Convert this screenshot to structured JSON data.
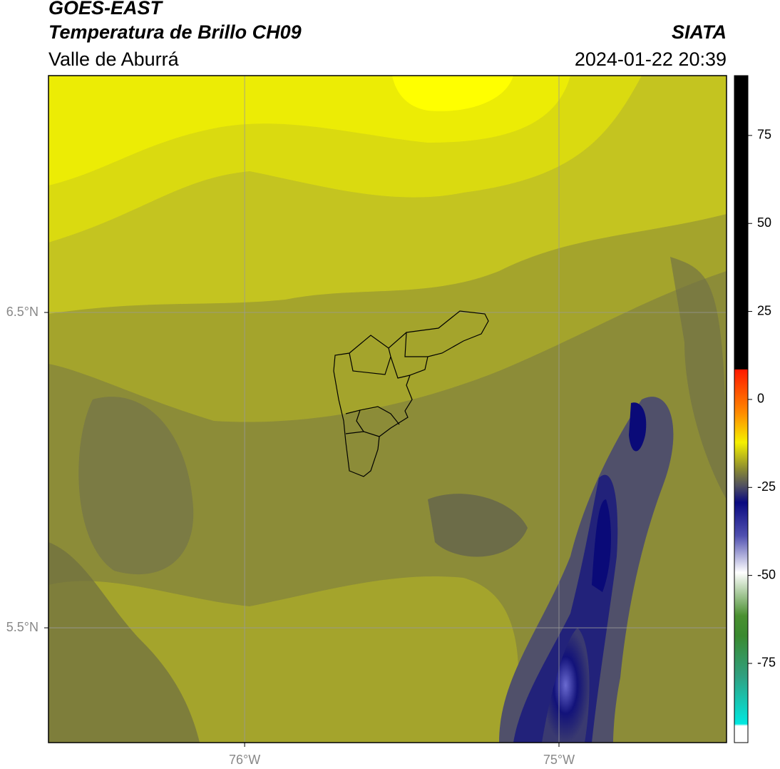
{
  "header": {
    "title": "GOES-EAST",
    "subtitle": "Temperatura de Brillo CH09",
    "region": "Valle de Aburrá",
    "source": "SIATA",
    "datetime": "2024-01-22 20:39"
  },
  "map": {
    "xlim": [
      -76.624,
      -74.467
    ],
    "ylim": [
      5.136,
      7.251
    ],
    "xticks": [
      {
        "value": -76,
        "label": "76°W"
      },
      {
        "value": -75,
        "label": "75°W"
      }
    ],
    "yticks": [
      {
        "value": 6.5,
        "label": "6.5°N"
      },
      {
        "value": 5.5,
        "label": "5.5°N"
      }
    ],
    "grid": true
  },
  "colorbar": {
    "clim": [
      -97.5,
      92
    ],
    "ticks": [
      75,
      50,
      25,
      0,
      -25,
      -50,
      -75
    ]
  }
}
